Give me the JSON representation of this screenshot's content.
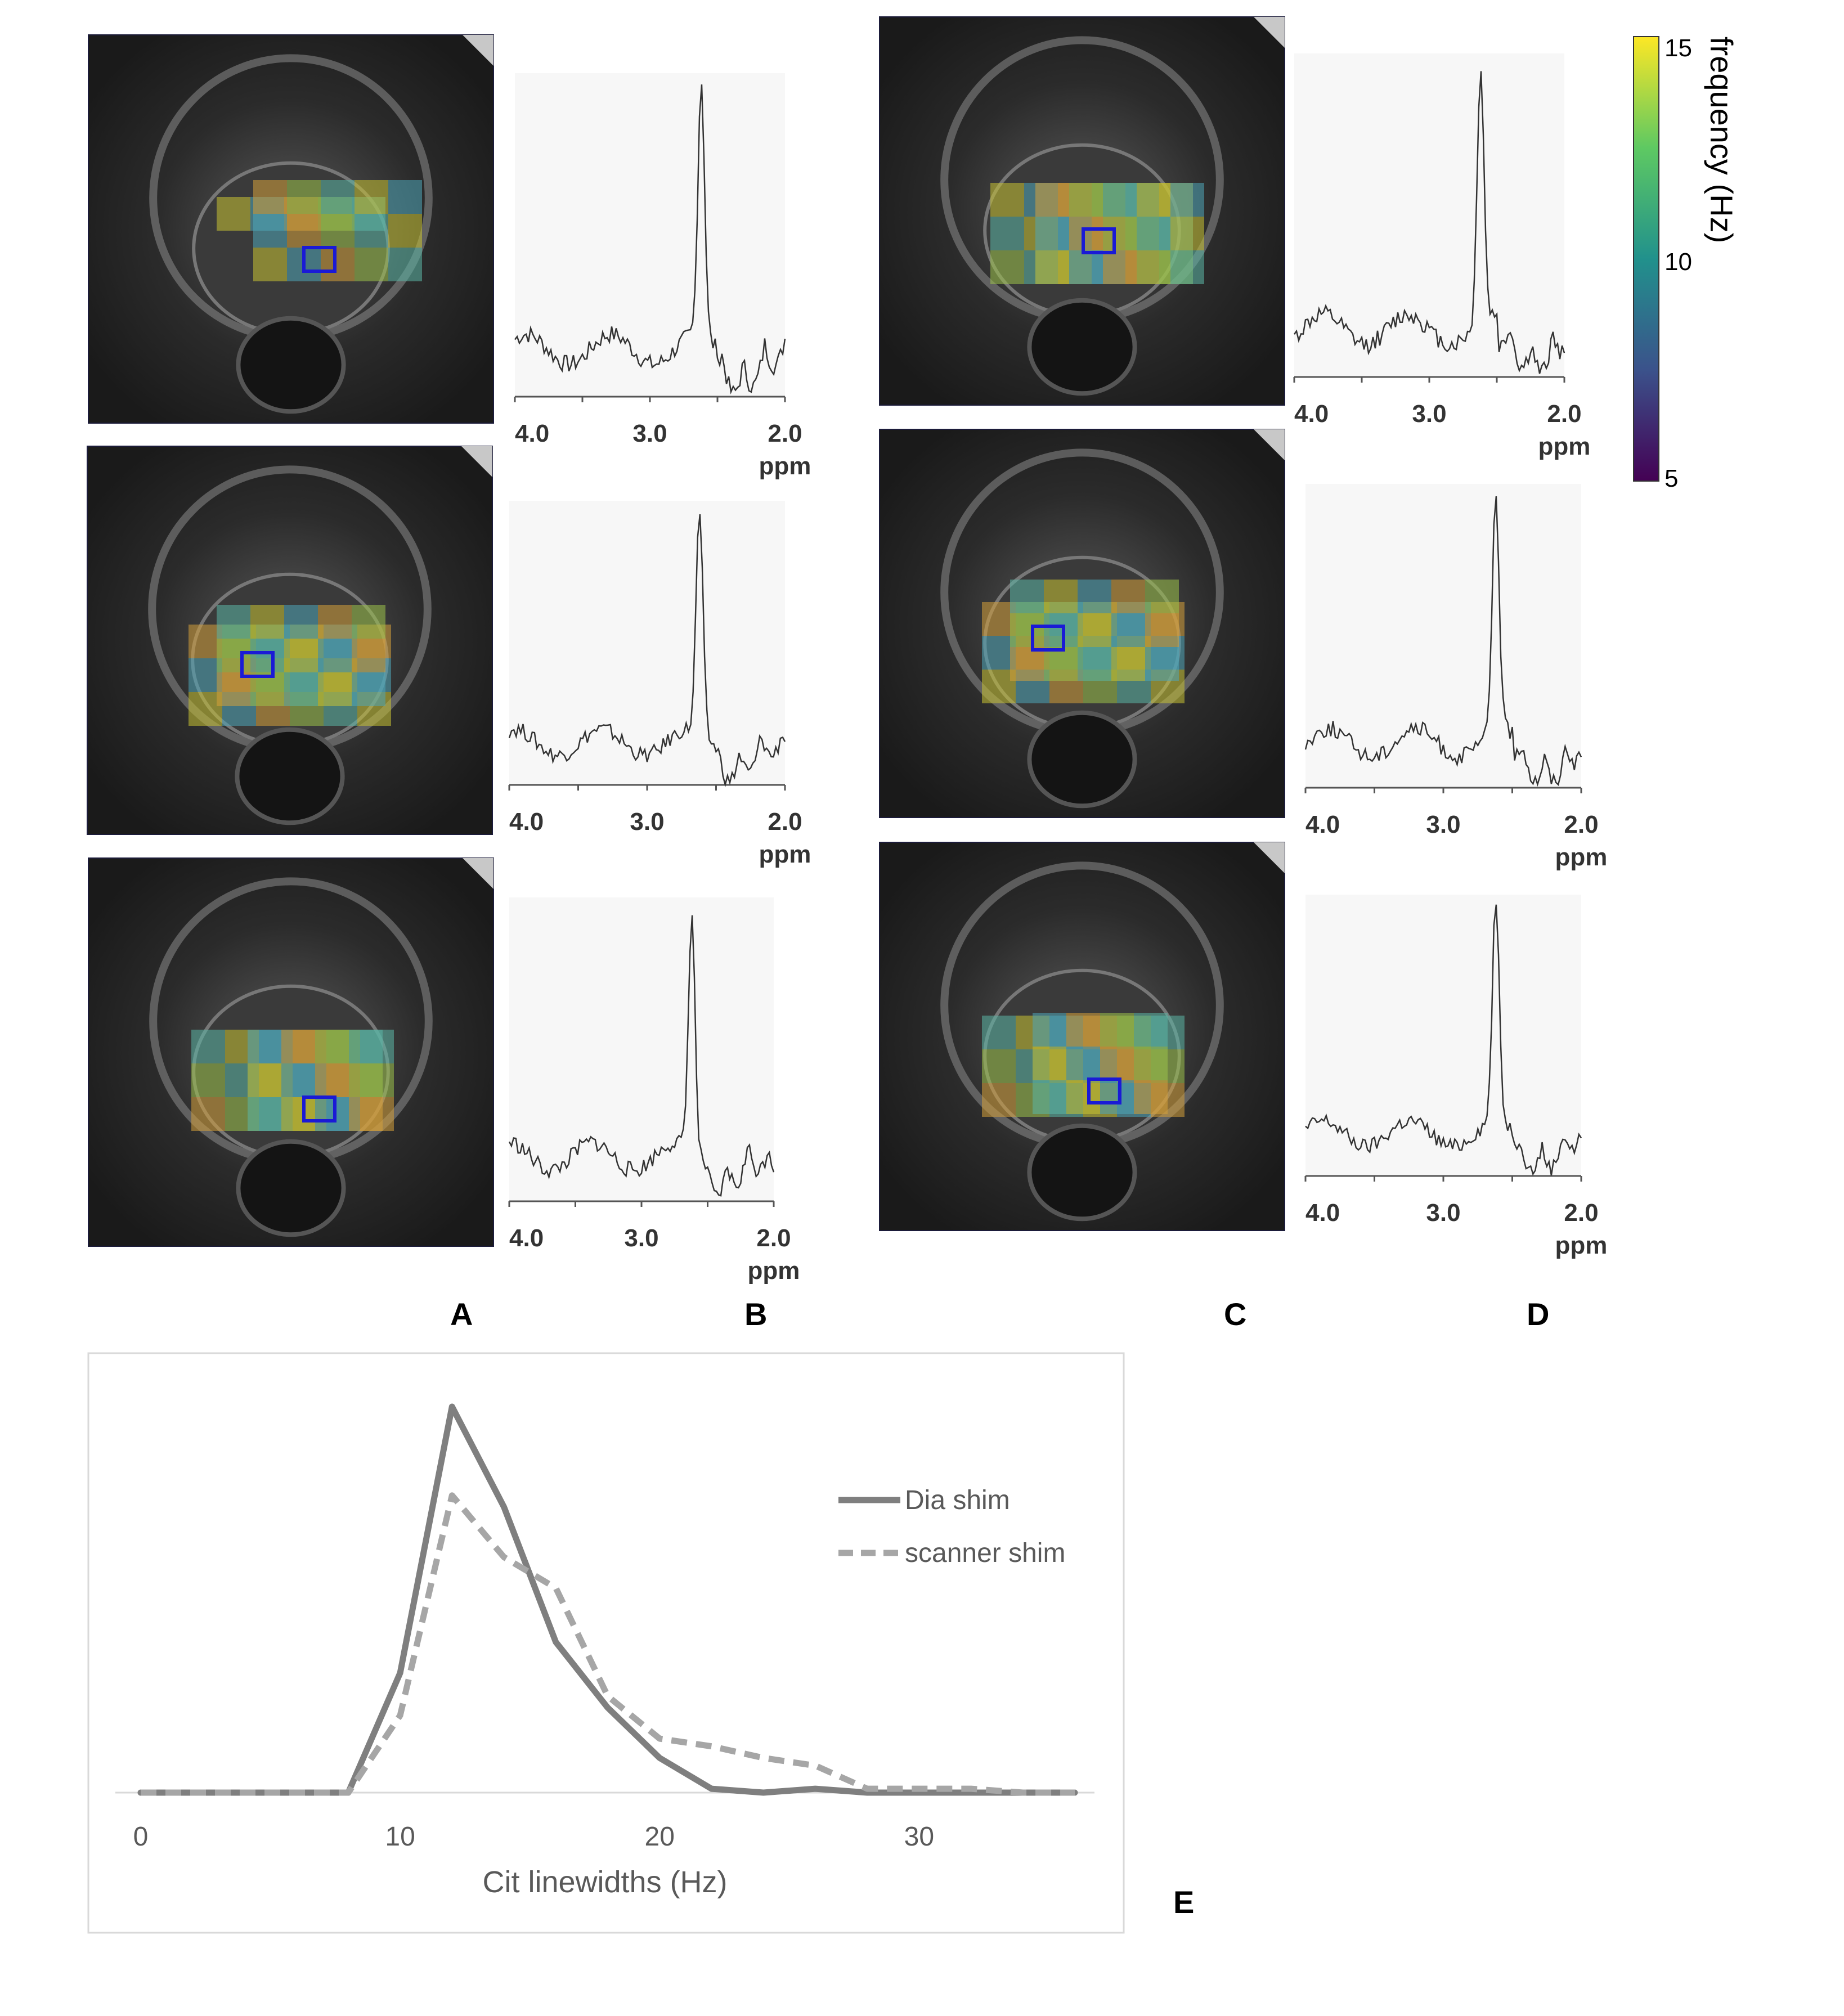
{
  "panel_letters": {
    "a": "A",
    "b": "B",
    "c": "C",
    "d": "D",
    "e": "E"
  },
  "colorbar": {
    "label": "frequency (Hz)",
    "ticks": [
      "15",
      "10",
      "5"
    ],
    "range": [
      5,
      15
    ],
    "colors": [
      "#440154",
      "#3b528b",
      "#21918c",
      "#5ec962",
      "#fde725"
    ]
  },
  "mri_rows": {
    "left": [
      {
        "row": 1,
        "roi_box_color": "#1a1ad6"
      },
      {
        "row": 2,
        "roi_box_color": "#1a1ad6"
      },
      {
        "row": 3,
        "roi_box_color": "#1a1ad6"
      }
    ],
    "right": [
      {
        "row": 1,
        "roi_box_color": "#1a1ad6"
      },
      {
        "row": 2,
        "roi_box_color": "#1a1ad6"
      },
      {
        "row": 3,
        "roi_box_color": "#1a1ad6"
      }
    ]
  },
  "spectrum_axis": {
    "ticks": [
      "4.0",
      "3.0",
      "2.0"
    ],
    "unit": "ppm"
  },
  "chart_data": {
    "type": "line",
    "title": "",
    "xlabel": "Cit linewidths (Hz)",
    "ylabel": "",
    "xlim": [
      0,
      36
    ],
    "ylim": [
      0,
      1
    ],
    "x_ticks": [
      "0",
      "10",
      "20",
      "30"
    ],
    "legend_position": "right",
    "x": [
      0,
      2,
      4,
      6,
      8,
      10,
      12,
      14,
      16,
      18,
      20,
      22,
      24,
      26,
      28,
      30,
      32,
      34,
      36
    ],
    "series": [
      {
        "name": "Dia shim",
        "style": "solid",
        "color": "#7f7f7f",
        "values": [
          0,
          0,
          0,
          0,
          0,
          0.31,
          1.0,
          0.74,
          0.39,
          0.22,
          0.09,
          0.01,
          0.0,
          0.01,
          0,
          0,
          0,
          0,
          0
        ]
      },
      {
        "name": "scanner shim",
        "style": "dashed",
        "color": "#a6a6a6",
        "values": [
          0,
          0,
          0,
          0,
          0,
          0.2,
          0.77,
          0.61,
          0.53,
          0.25,
          0.14,
          0.12,
          0.09,
          0.07,
          0.01,
          0.01,
          0.01,
          0,
          0
        ]
      }
    ]
  }
}
